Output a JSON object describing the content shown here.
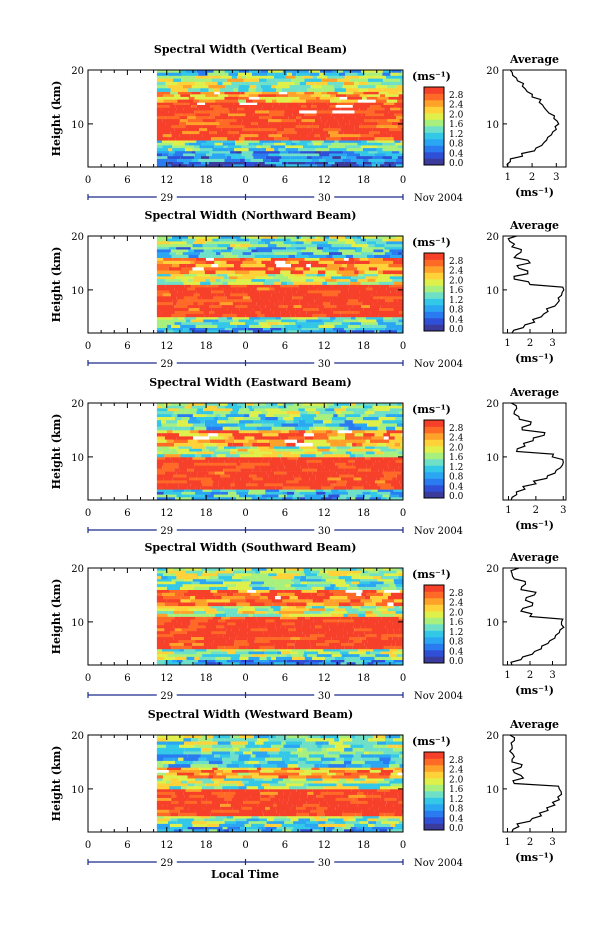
{
  "figure": {
    "xlabel": "Local Time",
    "month_label": "Nov 2004",
    "hour_ticks": [
      "0",
      "6",
      "12",
      "18",
      "0",
      "6",
      "12",
      "18",
      "0"
    ],
    "day_labels": [
      "29",
      "30"
    ],
    "colorbar_unit": "(ms⁻¹)",
    "colorbar_ticks": [
      "0.0",
      "0.4",
      "0.8",
      "1.2",
      "1.6",
      "2.0",
      "2.4",
      "2.8"
    ],
    "colors": {
      "scale": [
        "#3b3b9c",
        "#2f4fd6",
        "#2b7bf0",
        "#2aa6f2",
        "#34c8e8",
        "#6fe0c8",
        "#a8f07e",
        "#e0f04a",
        "#ffd23a",
        "#ffa22a",
        "#ff6a26",
        "#f7402a"
      ],
      "white_gap": "#ffffff"
    }
  },
  "chart_data": [
    {
      "type": "heatmap",
      "title": "Spectral Width (Vertical Beam)",
      "ylabel": "Height (km)",
      "x_hours": [
        0,
        48
      ],
      "data_start_hour": 10.5,
      "ylim": [
        2,
        20
      ],
      "y_ticks": [
        10,
        20
      ],
      "colorbar_range": [
        0.0,
        2.8
      ],
      "bands": [
        {
          "from": 2,
          "to": 3,
          "value": 0.4
        },
        {
          "from": 3,
          "to": 5,
          "value": 0.8
        },
        {
          "from": 5,
          "to": 7,
          "value": 1.3
        },
        {
          "from": 7,
          "to": 12,
          "value": 2.8
        },
        {
          "from": 12,
          "to": 14,
          "value": 2.9
        },
        {
          "from": 14,
          "to": 16,
          "value": 2.2
        },
        {
          "from": 16,
          "to": 19,
          "value": 1.6
        },
        {
          "from": 19,
          "to": 20,
          "value": 1.2
        }
      ],
      "average_profile": {
        "title": "Average",
        "xlabel": "(ms⁻¹)",
        "xlim": [
          0.8,
          3.4
        ],
        "x_ticks": [
          1,
          2,
          3
        ],
        "heights": [
          2,
          3,
          4,
          5,
          6,
          7,
          8,
          9,
          10,
          11,
          12,
          13,
          14,
          15,
          16,
          17,
          18,
          19,
          20
        ],
        "values": [
          1.0,
          1.1,
          1.6,
          2.1,
          2.4,
          2.6,
          2.8,
          3.0,
          3.1,
          2.9,
          2.7,
          2.5,
          2.3,
          2.0,
          1.8,
          1.6,
          1.4,
          1.2,
          1.1
        ]
      }
    },
    {
      "type": "heatmap",
      "title": "Spectral Width (Northward Beam)",
      "ylabel": "Height (km)",
      "x_hours": [
        0,
        48
      ],
      "data_start_hour": 10.5,
      "ylim": [
        2,
        20
      ],
      "y_ticks": [
        10,
        20
      ],
      "colorbar_range": [
        0.0,
        2.8
      ],
      "bands": [
        {
          "from": 2,
          "to": 3,
          "value": 0.8
        },
        {
          "from": 3,
          "to": 5,
          "value": 1.3
        },
        {
          "from": 5,
          "to": 11,
          "value": 2.9
        },
        {
          "from": 11,
          "to": 13,
          "value": 1.6
        },
        {
          "from": 13,
          "to": 16,
          "value": 2.4
        },
        {
          "from": 16,
          "to": 18,
          "value": 1.0
        },
        {
          "from": 18,
          "to": 20,
          "value": 1.4
        }
      ],
      "average_profile": {
        "title": "Average",
        "xlabel": "(ms⁻¹)",
        "xlim": [
          0.8,
          3.6
        ],
        "x_ticks": [
          1,
          2,
          3
        ],
        "heights": [
          2,
          3,
          4,
          5,
          6,
          7,
          8,
          9,
          10,
          11,
          12,
          13,
          14,
          15,
          16,
          17,
          18,
          19,
          20
        ],
        "values": [
          1.2,
          1.7,
          2.2,
          2.5,
          2.8,
          3.1,
          3.3,
          3.4,
          3.5,
          2.0,
          1.3,
          1.9,
          1.5,
          2.0,
          1.3,
          1.6,
          1.2,
          1.1,
          1.4
        ]
      }
    },
    {
      "type": "heatmap",
      "title": "Spectral Width (Eastward Beam)",
      "ylabel": "Height (km)",
      "x_hours": [
        0,
        48
      ],
      "data_start_hour": 10.5,
      "ylim": [
        2,
        20
      ],
      "y_ticks": [
        10,
        20
      ],
      "colorbar_range": [
        0.0,
        2.8
      ],
      "bands": [
        {
          "from": 2,
          "to": 4,
          "value": 1.0
        },
        {
          "from": 4,
          "to": 10,
          "value": 2.9
        },
        {
          "from": 10,
          "to": 12,
          "value": 1.6
        },
        {
          "from": 12,
          "to": 15,
          "value": 2.3
        },
        {
          "from": 15,
          "to": 18,
          "value": 1.2
        },
        {
          "from": 18,
          "to": 20,
          "value": 1.5
        }
      ],
      "average_profile": {
        "title": "Average",
        "xlabel": "(ms⁻¹)",
        "xlim": [
          0.8,
          3.1
        ],
        "x_ticks": [
          1,
          2,
          3
        ],
        "heights": [
          2,
          3,
          4,
          5,
          6,
          7,
          8,
          9,
          10,
          11,
          12,
          13,
          14,
          15,
          16,
          17,
          18,
          19,
          20
        ],
        "values": [
          1.1,
          1.3,
          1.6,
          2.0,
          2.4,
          2.7,
          2.9,
          3.0,
          2.6,
          1.3,
          1.6,
          1.9,
          2.3,
          1.5,
          1.8,
          1.4,
          1.2,
          1.3,
          1.1
        ]
      }
    },
    {
      "type": "heatmap",
      "title": "Spectral Width (Southward Beam)",
      "ylabel": "Height (km)",
      "x_hours": [
        0,
        48
      ],
      "data_start_hour": 10.5,
      "ylim": [
        2,
        20
      ],
      "y_ticks": [
        10,
        20
      ],
      "colorbar_range": [
        0.0,
        2.8
      ],
      "bands": [
        {
          "from": 2,
          "to": 3,
          "value": 0.8
        },
        {
          "from": 3,
          "to": 5,
          "value": 1.4
        },
        {
          "from": 5,
          "to": 11,
          "value": 2.9
        },
        {
          "from": 11,
          "to": 13,
          "value": 1.7
        },
        {
          "from": 13,
          "to": 16,
          "value": 2.5
        },
        {
          "from": 16,
          "to": 18,
          "value": 1.3
        },
        {
          "from": 18,
          "to": 20,
          "value": 1.5
        }
      ],
      "average_profile": {
        "title": "Average",
        "xlabel": "(ms⁻¹)",
        "xlim": [
          0.8,
          3.6
        ],
        "x_ticks": [
          1,
          2,
          3
        ],
        "heights": [
          2,
          3,
          4,
          5,
          6,
          7,
          8,
          9,
          10,
          11,
          12,
          13,
          14,
          15,
          16,
          17,
          18,
          19,
          20
        ],
        "values": [
          1.2,
          1.6,
          2.1,
          2.5,
          2.8,
          3.1,
          3.3,
          3.5,
          3.4,
          2.0,
          1.6,
          2.1,
          1.8,
          2.2,
          1.6,
          1.8,
          1.3,
          1.2,
          1.5
        ]
      }
    },
    {
      "type": "heatmap",
      "title": "Spectral Width (Westward Beam)",
      "ylabel": "Height (km)",
      "x_hours": [
        0,
        48
      ],
      "data_start_hour": 10.5,
      "ylim": [
        2,
        20
      ],
      "y_ticks": [
        10,
        20
      ],
      "colorbar_range": [
        0.0,
        2.8
      ],
      "bands": [
        {
          "from": 2,
          "to": 3,
          "value": 0.9
        },
        {
          "from": 3,
          "to": 5,
          "value": 1.4
        },
        {
          "from": 5,
          "to": 10,
          "value": 2.9
        },
        {
          "from": 10,
          "to": 12,
          "value": 1.5
        },
        {
          "from": 12,
          "to": 14,
          "value": 2.2
        },
        {
          "from": 14,
          "to": 17,
          "value": 1.1
        },
        {
          "from": 17,
          "to": 20,
          "value": 1.4
        }
      ],
      "average_profile": {
        "title": "Average",
        "xlabel": "(ms⁻¹)",
        "xlim": [
          0.8,
          3.6
        ],
        "x_ticks": [
          1,
          2,
          3
        ],
        "heights": [
          2,
          3,
          4,
          5,
          6,
          7,
          8,
          9,
          10,
          11,
          12,
          13,
          14,
          15,
          16,
          17,
          18,
          19,
          20
        ],
        "values": [
          1.2,
          1.5,
          2.0,
          2.5,
          2.8,
          3.1,
          3.3,
          3.4,
          3.3,
          1.3,
          1.7,
          1.3,
          1.6,
          1.2,
          1.3,
          1.1,
          1.2,
          1.3,
          1.1
        ]
      }
    }
  ]
}
